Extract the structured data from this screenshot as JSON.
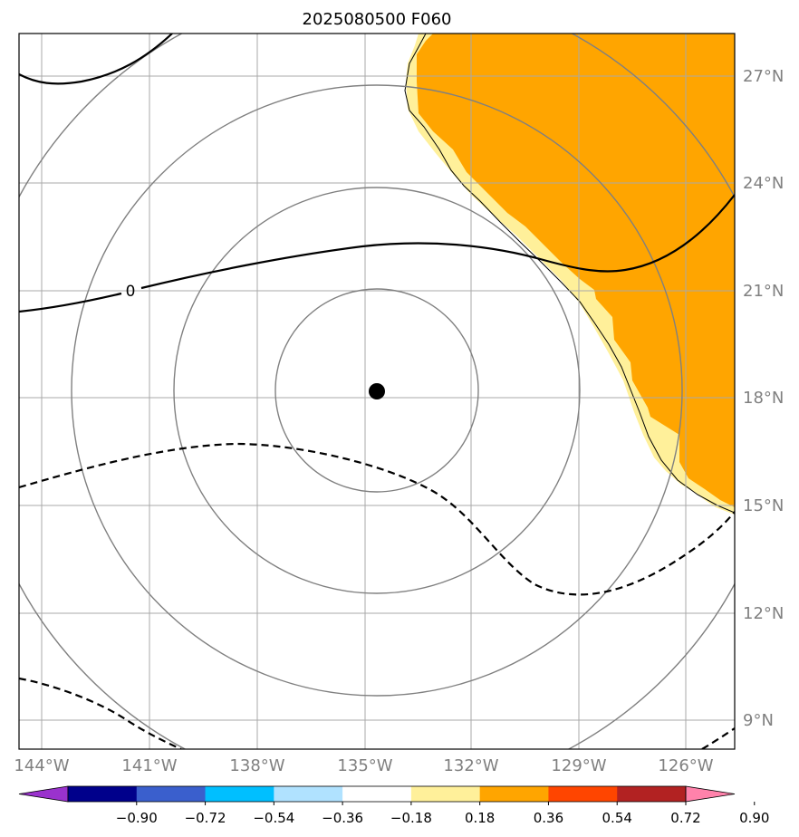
{
  "title": "2025080500 F060",
  "map": {
    "lon_labels": [
      "144°W",
      "141°W",
      "138°W",
      "135°W",
      "132°W",
      "129°W",
      "126°W"
    ],
    "lat_labels": [
      "27°N",
      "24°N",
      "21°N",
      "18°N",
      "15°N",
      "12°N",
      "9°N"
    ],
    "contour_label": "0",
    "gridline_color": "#a9a9a9",
    "range_ring_color": "#808080",
    "center_marker": "storm-center-dot"
  },
  "colorbar": {
    "ticks": [
      "−0.90",
      "−0.72",
      "−0.54",
      "−0.36",
      "−0.18",
      "0.18",
      "0.36",
      "0.54",
      "0.72",
      "0.90"
    ],
    "colors": [
      "#9a32cd",
      "#00008b",
      "#3a5fcd",
      "#00bfff",
      "#b0e2ff",
      "#ffffff",
      "#fff09a",
      "#ffa500",
      "#ff4500",
      "#b22222",
      "#ff82ab"
    ]
  }
}
